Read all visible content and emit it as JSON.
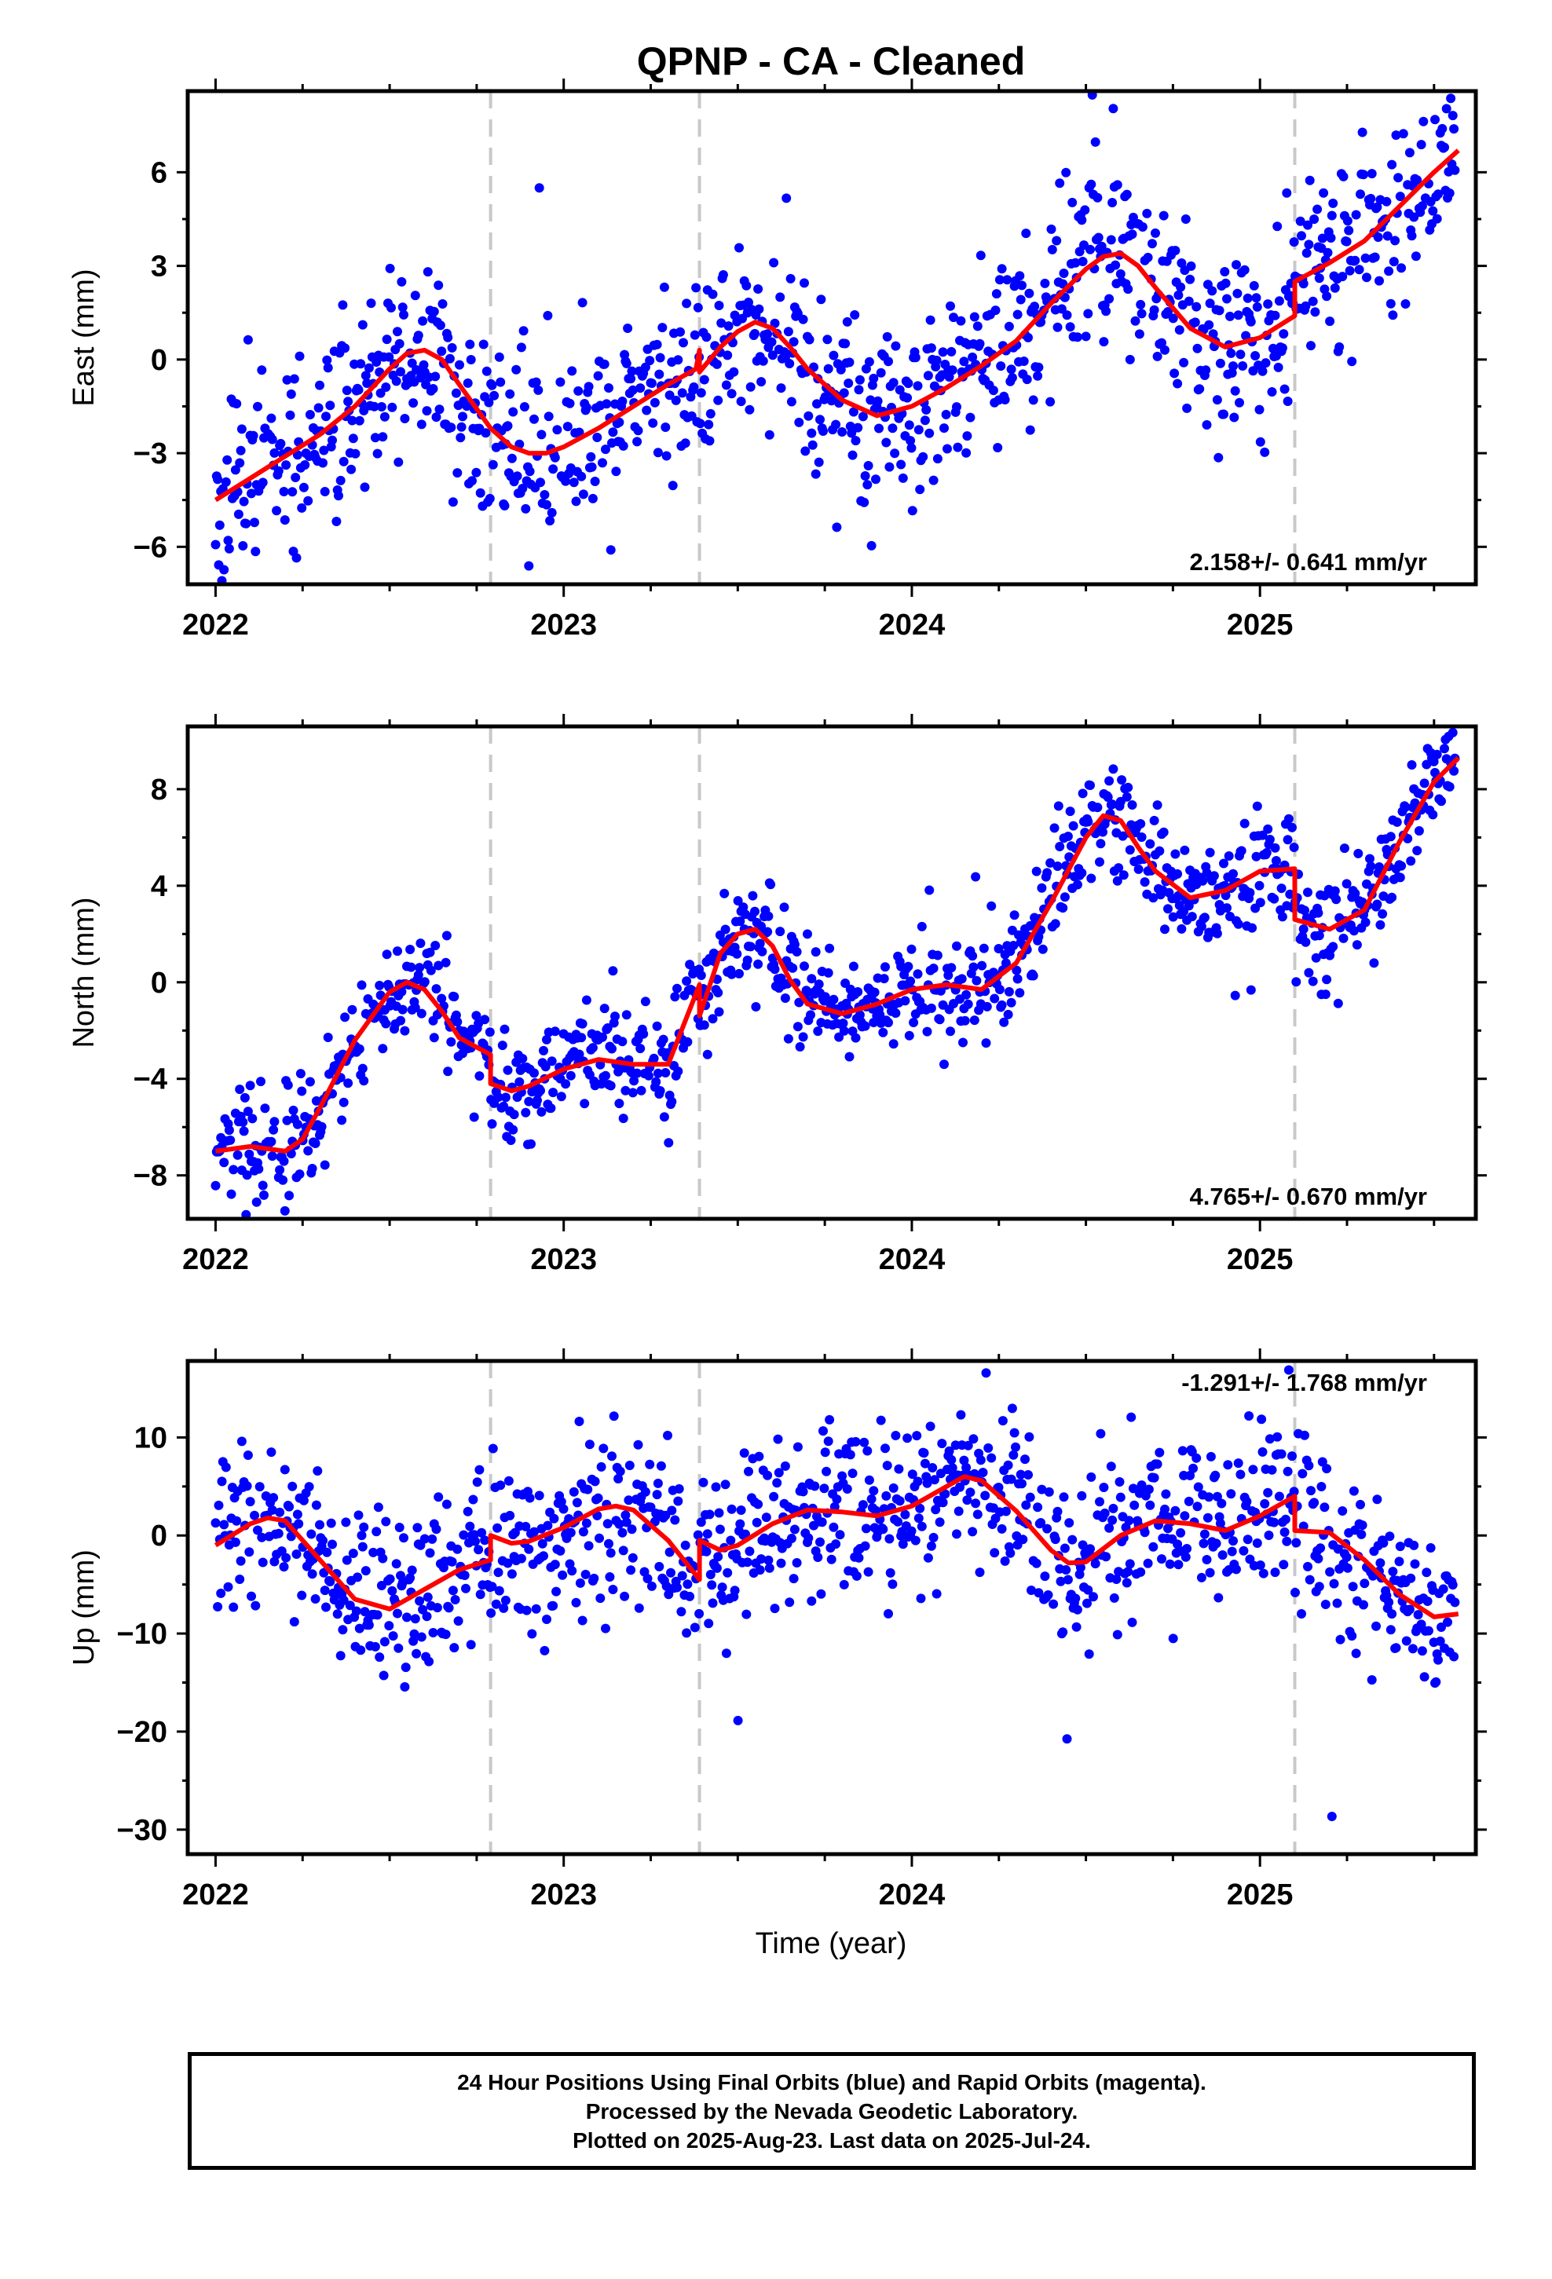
{
  "figure": {
    "title": "QPNP  - CA - Cleaned",
    "xlabel": "Time (year)"
  },
  "footer": {
    "line1": "24 Hour Positions Using Final Orbits (blue) and Rapid Orbits (magenta).",
    "line2": "Processed by the Nevada Geodetic Laboratory.",
    "line3": "Plotted on 2025-Aug-23. Last data on 2025-Jul-24."
  },
  "colors": {
    "points": "#0000ff",
    "model": "#ff0000",
    "equipment_change": "#c8c8c8",
    "frame": "#000000"
  },
  "chart_data": [
    {
      "type": "scatter",
      "component": "east",
      "ylabel": "East (mm)",
      "xlim": [
        2021.92,
        2025.62
      ],
      "ylim": [
        -7.2,
        8.6
      ],
      "yticks": [
        -6,
        -3,
        0,
        3,
        6
      ],
      "ytick_labels": [
        "−6",
        "−3",
        "0",
        "3",
        "6"
      ],
      "xticks": [
        2022,
        2023,
        2024,
        2025
      ],
      "xtick_labels": [
        "2022",
        "2023",
        "2024",
        "2025"
      ],
      "rate_text": "2.158+/- 0.641 mm/yr",
      "rate_position": "bottom-right",
      "breaks": [
        2022.79,
        2023.39,
        2025.1
      ],
      "model": {
        "x": [
          2022.0,
          2022.1,
          2022.2,
          2022.3,
          2022.4,
          2022.5,
          2022.55,
          2022.6,
          2022.65,
          2022.7,
          2022.79,
          2022.85,
          2022.9,
          2022.95,
          2023.0,
          2023.1,
          2023.2,
          2023.3,
          2023.38,
          2023.39,
          2023.39,
          2023.45,
          2023.5,
          2023.55,
          2023.6,
          2023.65,
          2023.7,
          2023.8,
          2023.9,
          2024.0,
          2024.1,
          2024.2,
          2024.3,
          2024.4,
          2024.5,
          2024.55,
          2024.6,
          2024.65,
          2024.7,
          2024.8,
          2024.9,
          2025.0,
          2025.1,
          2025.1,
          2025.2,
          2025.3,
          2025.4,
          2025.5,
          2025.57
        ],
        "y": [
          -4.5,
          -3.8,
          -3.1,
          -2.4,
          -1.5,
          -0.3,
          0.2,
          0.3,
          0.0,
          -0.8,
          -2.2,
          -2.8,
          -3.0,
          -3.0,
          -2.8,
          -2.2,
          -1.5,
          -0.8,
          -0.3,
          0.3,
          -0.4,
          0.4,
          0.9,
          1.2,
          1.0,
          0.4,
          -0.3,
          -1.3,
          -1.8,
          -1.5,
          -0.9,
          -0.2,
          0.6,
          1.8,
          2.9,
          3.3,
          3.4,
          3.0,
          2.3,
          1.0,
          0.4,
          0.7,
          1.4,
          2.5,
          3.1,
          3.8,
          4.9,
          6.0,
          6.7
        ]
      },
      "points_model": {
        "kind": "fit_plus_noise",
        "count": 1180,
        "sigma_mm": 1.5,
        "seed": 11,
        "x_start": 2022.0,
        "x_end": 2025.56
      }
    },
    {
      "type": "scatter",
      "component": "north",
      "ylabel": "North (mm)",
      "xlim": [
        2021.92,
        2025.62
      ],
      "ylim": [
        -9.8,
        10.6
      ],
      "yticks": [
        -8,
        -4,
        0,
        4,
        8
      ],
      "ytick_labels": [
        "−8",
        "−4",
        "0",
        "4",
        "8"
      ],
      "xticks": [
        2022,
        2023,
        2024,
        2025
      ],
      "xtick_labels": [
        "2022",
        "2023",
        "2024",
        "2025"
      ],
      "rate_text": "4.765+/- 0.670 mm/yr",
      "rate_position": "bottom-right",
      "breaks": [
        2022.79,
        2023.39,
        2025.1
      ],
      "model": {
        "x": [
          2022.0,
          2022.1,
          2022.2,
          2022.25,
          2022.3,
          2022.4,
          2022.5,
          2022.55,
          2022.6,
          2022.65,
          2022.7,
          2022.79,
          2022.79,
          2022.85,
          2022.9,
          2023.0,
          2023.1,
          2023.2,
          2023.3,
          2023.39,
          2023.39,
          2023.45,
          2023.5,
          2023.55,
          2023.6,
          2023.65,
          2023.7,
          2023.8,
          2023.9,
          2024.0,
          2024.1,
          2024.2,
          2024.3,
          2024.4,
          2024.5,
          2024.55,
          2024.6,
          2024.65,
          2024.7,
          2024.8,
          2024.9,
          2025.0,
          2025.1,
          2025.1,
          2025.2,
          2025.3,
          2025.4,
          2025.5,
          2025.57
        ],
        "y": [
          -7.0,
          -6.8,
          -7.0,
          -6.5,
          -5.2,
          -2.4,
          -0.4,
          0.0,
          -0.3,
          -1.2,
          -2.3,
          -3.0,
          -4.2,
          -4.5,
          -4.3,
          -3.6,
          -3.2,
          -3.4,
          -3.4,
          -0.1,
          -1.4,
          1.2,
          2.0,
          2.2,
          1.5,
          0.1,
          -0.9,
          -1.3,
          -0.9,
          -0.3,
          -0.1,
          -0.3,
          0.8,
          3.3,
          6.0,
          6.9,
          6.7,
          5.6,
          4.6,
          3.5,
          3.8,
          4.6,
          4.7,
          2.6,
          2.2,
          3.0,
          5.8,
          8.3,
          9.3
        ]
      },
      "points_model": {
        "kind": "fit_plus_noise",
        "count": 1180,
        "sigma_mm": 1.1,
        "seed": 23,
        "x_start": 2022.0,
        "x_end": 2025.56
      }
    },
    {
      "type": "scatter",
      "component": "up",
      "ylabel": "Up (mm)",
      "xlim": [
        2021.92,
        2025.62
      ],
      "ylim": [
        -32.5,
        17.8
      ],
      "yticks": [
        -30,
        -20,
        -10,
        0,
        10
      ],
      "ytick_labels": [
        "−30",
        "−20",
        "−10",
        "0",
        "10"
      ],
      "xticks": [
        2022,
        2023,
        2024,
        2025
      ],
      "xtick_labels": [
        "2022",
        "2023",
        "2024",
        "2025"
      ],
      "rate_text": "-1.291+/- 1.768 mm/yr",
      "rate_position": "top-right",
      "breaks": [
        2022.79,
        2023.39,
        2025.1
      ],
      "model": {
        "x": [
          2022.0,
          2022.1,
          2022.15,
          2022.2,
          2022.3,
          2022.4,
          2022.5,
          2022.6,
          2022.7,
          2022.79,
          2022.79,
          2022.85,
          2022.9,
          2023.0,
          2023.1,
          2023.15,
          2023.2,
          2023.3,
          2023.39,
          2023.39,
          2023.45,
          2023.5,
          2023.6,
          2023.7,
          2023.8,
          2023.9,
          2024.0,
          2024.1,
          2024.15,
          2024.2,
          2024.3,
          2024.4,
          2024.45,
          2024.5,
          2024.6,
          2024.7,
          2024.8,
          2024.9,
          2025.0,
          2025.1,
          2025.1,
          2025.2,
          2025.3,
          2025.4,
          2025.5,
          2025.57
        ],
        "y": [
          -1.0,
          1.2,
          1.8,
          1.5,
          -2.5,
          -6.5,
          -7.5,
          -5.5,
          -3.5,
          -2.5,
          0.0,
          -0.8,
          -0.6,
          0.8,
          2.7,
          3.0,
          2.6,
          -0.5,
          -4.5,
          -0.5,
          -1.5,
          -1.0,
          1.2,
          2.6,
          2.4,
          2.0,
          3.0,
          5.0,
          6.0,
          5.6,
          2.5,
          -1.5,
          -2.8,
          -2.7,
          0.0,
          1.5,
          1.2,
          0.5,
          2.0,
          4.0,
          0.5,
          0.3,
          -2.5,
          -6.0,
          -8.3,
          -8.0
        ]
      },
      "points_model": {
        "kind": "fit_plus_noise",
        "count": 1180,
        "sigma_mm": 4.2,
        "seed": 37,
        "x_start": 2022.0,
        "x_end": 2025.56
      }
    }
  ]
}
